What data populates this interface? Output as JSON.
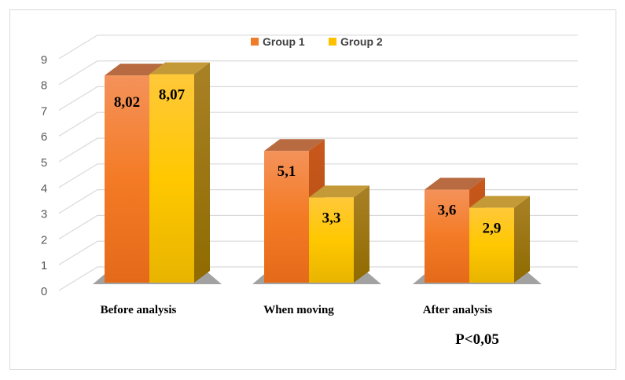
{
  "chart_data": {
    "type": "bar",
    "style": "3d-clustered-column",
    "categories": [
      "Before analysis",
      "When moving",
      "After analysis"
    ],
    "series": [
      {
        "name": "Group 1",
        "values": [
          8.02,
          5.1,
          3.6
        ],
        "labels": [
          "8,02",
          "5,1",
          "3,6"
        ],
        "color": "#f07c2a"
      },
      {
        "name": "Group 2",
        "values": [
          8.07,
          3.3,
          2.9
        ],
        "labels": [
          "8,07",
          "3,3",
          "2,9"
        ],
        "color": "#ffc000"
      }
    ],
    "ylim": [
      0,
      9
    ],
    "yticks": [
      "0",
      "1",
      "2",
      "3",
      "4",
      "5",
      "6",
      "7",
      "8",
      "9"
    ],
    "grid": true,
    "legend": "top-center",
    "annotation": "P<0,05"
  }
}
